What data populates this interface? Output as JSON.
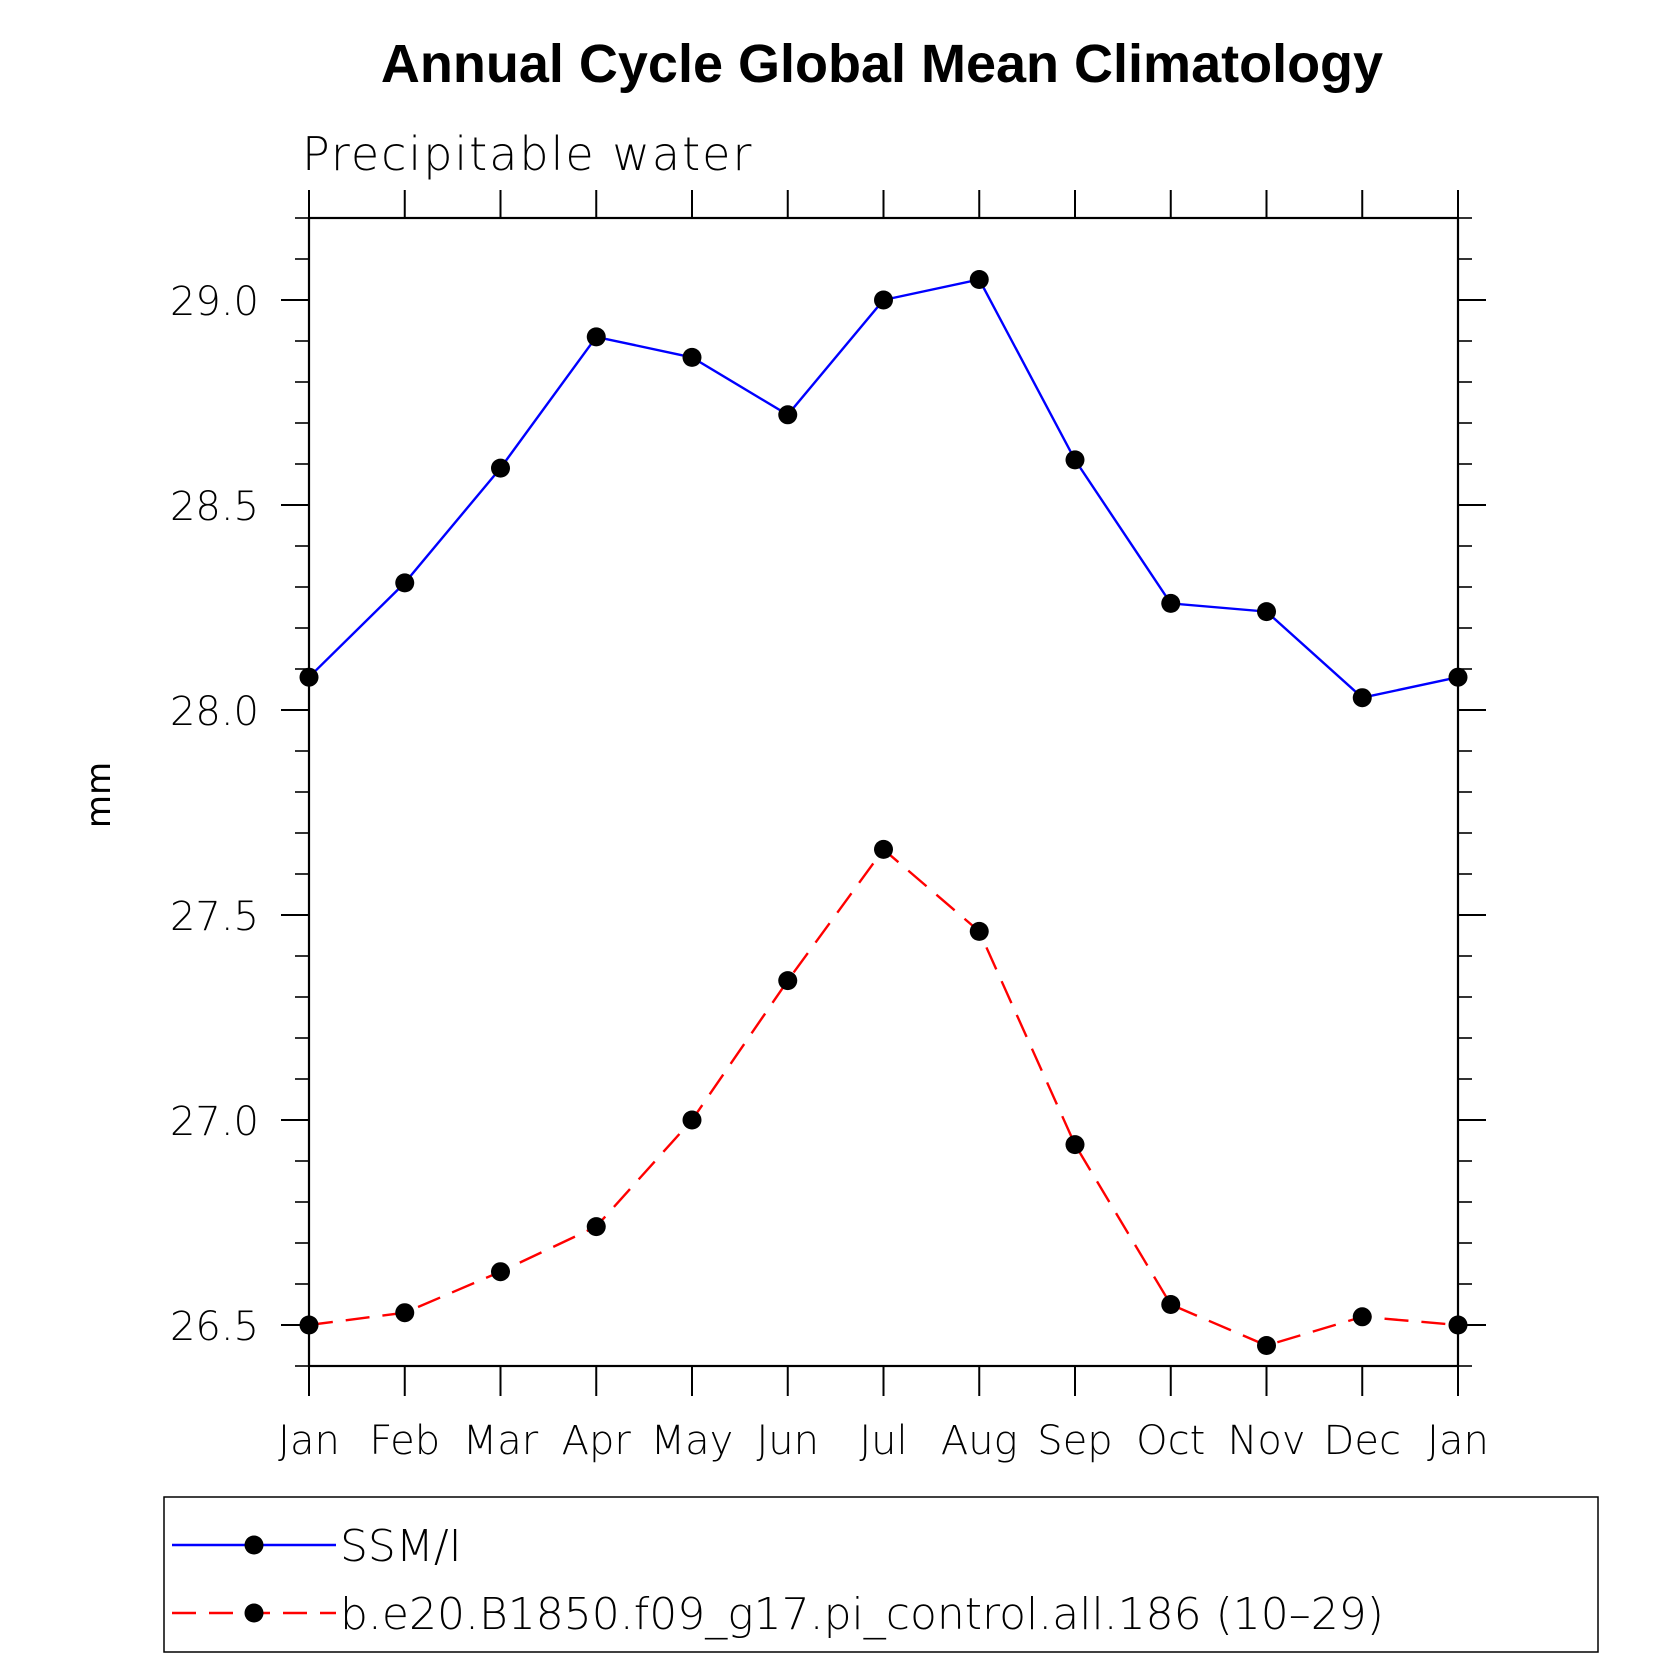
{
  "chart_data": {
    "type": "line",
    "title": "Annual Cycle Global Mean Climatology",
    "subtitle": "Precipitable water",
    "xlabel": "",
    "ylabel": "mm",
    "categories": [
      "Jan",
      "Feb",
      "Mar",
      "Apr",
      "May",
      "Jun",
      "Jul",
      "Aug",
      "Sep",
      "Oct",
      "Nov",
      "Dec",
      "Jan"
    ],
    "ylim": [
      26.4,
      29.2
    ],
    "yticks": [
      26.5,
      27.0,
      27.5,
      28.0,
      28.5,
      29.0
    ],
    "ytick_labels": [
      "26.5",
      "27.0",
      "27.5",
      "28.0",
      "28.5",
      "29.0"
    ],
    "y_minor_step": 0.1,
    "grid": false,
    "legend_position": "bottom",
    "series": [
      {
        "name": "SSM/I",
        "color": "#0000ff",
        "line_style": "solid",
        "marker": "filled-circle",
        "values": [
          28.08,
          28.31,
          28.59,
          28.91,
          28.86,
          28.72,
          29.0,
          29.05,
          28.61,
          28.26,
          28.24,
          28.03,
          28.08
        ]
      },
      {
        "name": "b.e20.B1850.f09_g17.pi_control.all.186 (10–29)",
        "color": "#ff0000",
        "line_style": "dashed",
        "marker": "filled-circle",
        "values": [
          26.5,
          26.53,
          26.63,
          26.74,
          27.0,
          27.34,
          27.66,
          27.46,
          26.94,
          26.55,
          26.45,
          26.52,
          26.5
        ]
      }
    ]
  }
}
